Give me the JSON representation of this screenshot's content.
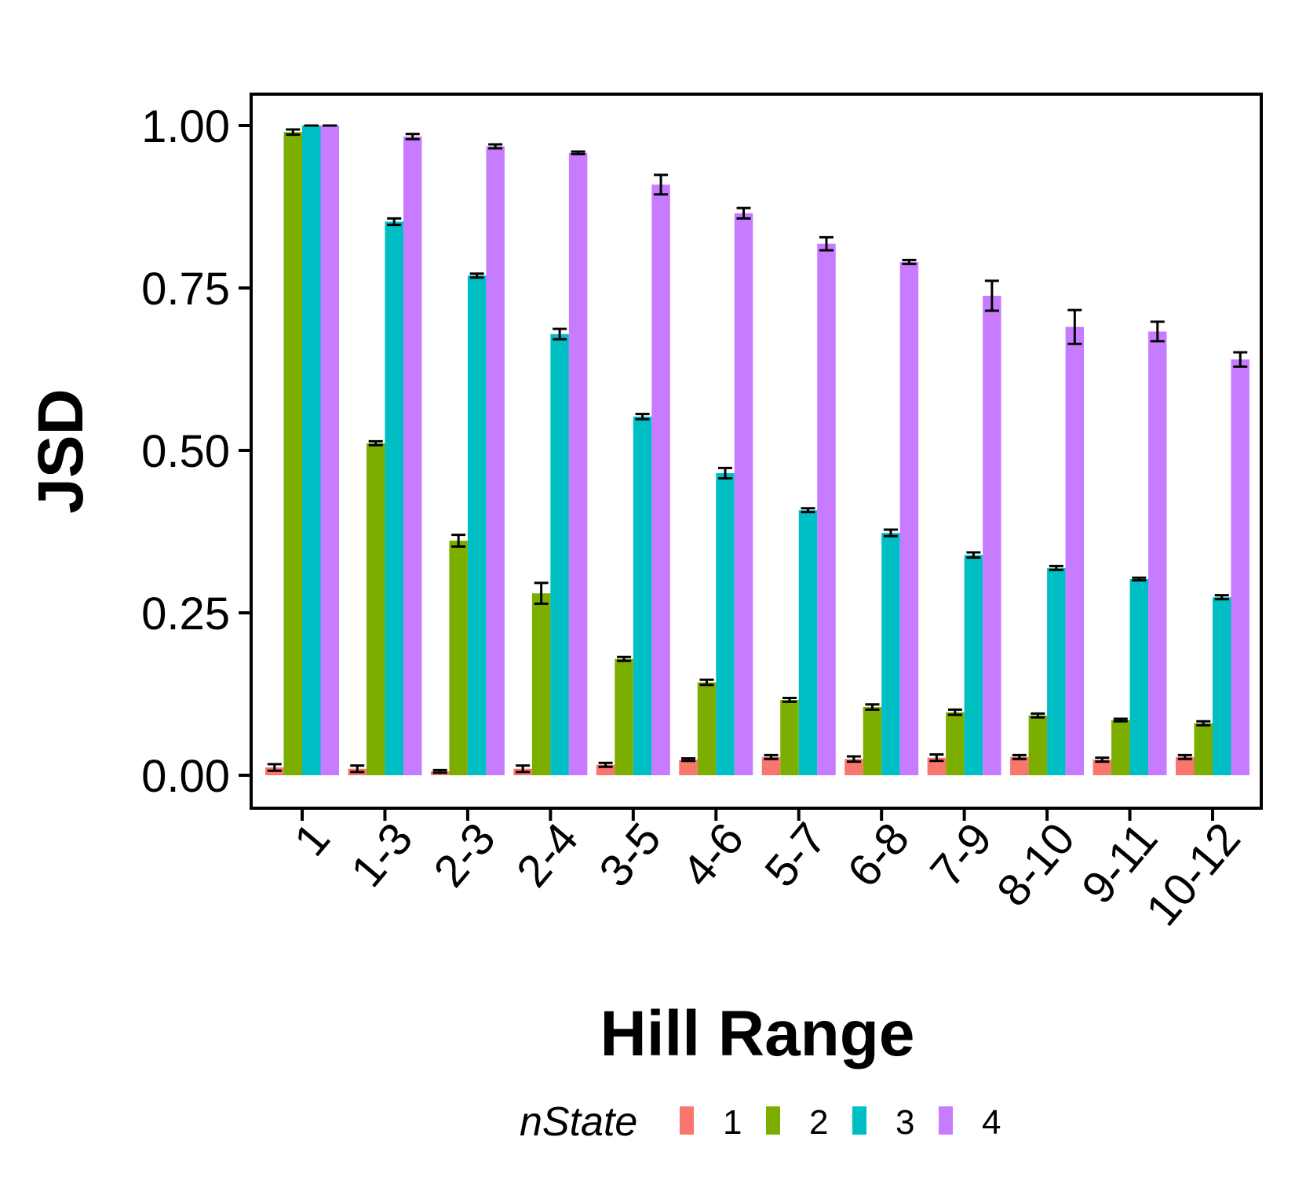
{
  "chart_data": {
    "type": "bar",
    "title": "",
    "xlabel": "Hill Range",
    "ylabel": "JSD",
    "ylim": [
      0,
      1
    ],
    "yticks": [
      "0.00",
      "0.25",
      "0.50",
      "0.75",
      "1.00"
    ],
    "categories": [
      "1",
      "1-3",
      "2-3",
      "2-4",
      "3-5",
      "4-6",
      "5-7",
      "6-8",
      "7-9",
      "8-10",
      "9-11",
      "10-12"
    ],
    "legend": {
      "title": "nState",
      "placement": "bottom"
    },
    "grid": false,
    "error_bars": true,
    "series": [
      {
        "name": "1",
        "color": "#F8766D",
        "values": [
          0.012,
          0.01,
          0.006,
          0.01,
          0.016,
          0.024,
          0.028,
          0.025,
          0.027,
          0.028,
          0.024,
          0.028
        ],
        "errors": [
          0.005,
          0.005,
          0.002,
          0.005,
          0.003,
          0.002,
          0.003,
          0.004,
          0.005,
          0.003,
          0.003,
          0.003
        ]
      },
      {
        "name": "2",
        "color": "#7CAE00",
        "values": [
          0.99,
          0.511,
          0.361,
          0.28,
          0.179,
          0.143,
          0.116,
          0.105,
          0.097,
          0.092,
          0.085,
          0.08
        ],
        "errors": [
          0.004,
          0.003,
          0.009,
          0.016,
          0.003,
          0.004,
          0.003,
          0.004,
          0.004,
          0.003,
          0.002,
          0.003
        ]
      },
      {
        "name": "3",
        "color": "#00BFC4",
        "values": [
          1.0,
          0.852,
          0.769,
          0.679,
          0.552,
          0.465,
          0.408,
          0.373,
          0.339,
          0.319,
          0.302,
          0.274
        ],
        "errors": [
          0.0,
          0.005,
          0.003,
          0.008,
          0.004,
          0.008,
          0.003,
          0.005,
          0.004,
          0.003,
          0.002,
          0.003
        ]
      },
      {
        "name": "4",
        "color": "#C77CFF",
        "values": [
          1.0,
          0.983,
          0.968,
          0.958,
          0.909,
          0.865,
          0.818,
          0.79,
          0.738,
          0.69,
          0.683,
          0.64
        ],
        "errors": [
          0.0,
          0.004,
          0.003,
          0.002,
          0.015,
          0.008,
          0.01,
          0.003,
          0.023,
          0.026,
          0.015,
          0.011
        ]
      }
    ]
  }
}
